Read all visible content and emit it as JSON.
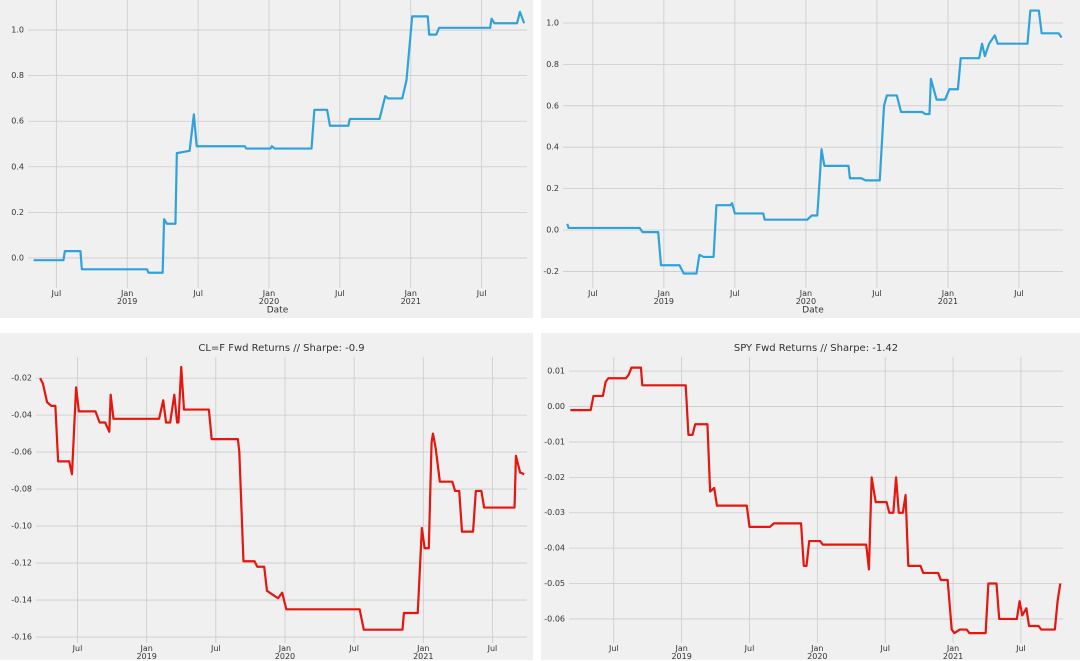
{
  "chart_data": [
    {
      "type": "line",
      "xlabel": "Date",
      "color": "#30a2da",
      "grid": true,
      "xlim": [
        2018.3,
        2021.82
      ],
      "ylim": [
        -0.132,
        1.132
      ],
      "xticks": [
        {
          "value": 2018.5,
          "label": "Jul"
        },
        {
          "value": 2019,
          "label": "Jan\n2019"
        },
        {
          "value": 2019.5,
          "label": "Jul"
        },
        {
          "value": 2020,
          "label": "Jan\n2020"
        },
        {
          "value": 2020.5,
          "label": "Jul"
        },
        {
          "value": 2021,
          "label": "Jan\n2021"
        },
        {
          "value": 2021.5,
          "label": "Jul"
        }
      ],
      "yticks": [
        {
          "value": 0,
          "label": "0.0"
        },
        0.2,
        0.4,
        0.6,
        0.8,
        {
          "value": 1,
          "label": "1.0"
        }
      ],
      "x": [
        2018.34,
        2018.55,
        2018.56,
        2018.67,
        2018.68,
        2019.14,
        2019.15,
        2019.25,
        2019.26,
        2019.28,
        2019.34,
        2019.35,
        2019.44,
        2019.47,
        2019.49,
        2019.83,
        2019.84,
        2020.01,
        2020.02,
        2020.04,
        2020.3,
        2020.32,
        2020.41,
        2020.43,
        2020.56,
        2020.57,
        2020.78,
        2020.82,
        2020.84,
        2020.94,
        2020.97,
        2021.01,
        2021.12,
        2021.13,
        2021.18,
        2021.2,
        2021.56,
        2021.57,
        2021.59,
        2021.75,
        2021.77,
        2021.8
      ],
      "values": [
        -0.01,
        -0.01,
        0.03,
        0.03,
        -0.05,
        -0.05,
        -0.065,
        -0.065,
        0.17,
        0.15,
        0.15,
        0.46,
        0.47,
        0.63,
        0.49,
        0.49,
        0.48,
        0.48,
        0.49,
        0.48,
        0.48,
        0.65,
        0.65,
        0.58,
        0.58,
        0.61,
        0.61,
        0.71,
        0.7,
        0.7,
        0.78,
        1.06,
        1.06,
        0.98,
        0.98,
        1.01,
        1.01,
        1.05,
        1.03,
        1.03,
        1.08,
        1.03
      ]
    },
    {
      "type": "line",
      "xlabel": "Date",
      "color": "#30a2da",
      "grid": true,
      "xlim": [
        2018.29,
        2021.81
      ],
      "ylim": [
        -0.28,
        1.111
      ],
      "xticks": [
        {
          "value": 2018.5,
          "label": "Jul"
        },
        {
          "value": 2019,
          "label": "Jan\n2019"
        },
        {
          "value": 2019.5,
          "label": "Jul"
        },
        {
          "value": 2020,
          "label": "Jan\n2020"
        },
        {
          "value": 2020.5,
          "label": "Jul"
        },
        {
          "value": 2021,
          "label": "Jan\n2021"
        },
        {
          "value": 2021.5,
          "label": "Jul"
        }
      ],
      "yticks": [
        -0.2,
        {
          "value": 0,
          "label": "0.0"
        },
        0.2,
        0.4,
        0.6,
        0.8,
        {
          "value": 1,
          "label": "1.0"
        }
      ],
      "x": [
        2018.32,
        2018.33,
        2018.83,
        2018.85,
        2018.96,
        2018.98,
        2019.11,
        2019.14,
        2019.23,
        2019.25,
        2019.28,
        2019.35,
        2019.37,
        2019.47,
        2019.48,
        2019.5,
        2019.7,
        2019.71,
        2020.01,
        2020.04,
        2020.08,
        2020.09,
        2020.11,
        2020.13,
        2020.3,
        2020.31,
        2020.39,
        2020.42,
        2020.52,
        2020.55,
        2020.57,
        2020.64,
        2020.67,
        2020.82,
        2020.84,
        2020.87,
        2020.88,
        2020.92,
        2020.98,
        2021.01,
        2021.07,
        2021.09,
        2021.22,
        2021.24,
        2021.26,
        2021.29,
        2021.33,
        2021.35,
        2021.56,
        2021.58,
        2021.64,
        2021.66,
        2021.78,
        2021.8
      ],
      "values": [
        0.03,
        0.01,
        0.01,
        -0.01,
        -0.01,
        -0.17,
        -0.17,
        -0.21,
        -0.21,
        -0.12,
        -0.13,
        -0.13,
        0.12,
        0.12,
        0.13,
        0.08,
        0.08,
        0.05,
        0.05,
        0.07,
        0.07,
        0.17,
        0.39,
        0.31,
        0.31,
        0.25,
        0.25,
        0.24,
        0.24,
        0.6,
        0.65,
        0.65,
        0.57,
        0.57,
        0.56,
        0.56,
        0.73,
        0.63,
        0.63,
        0.68,
        0.68,
        0.83,
        0.83,
        0.9,
        0.84,
        0.9,
        0.94,
        0.9,
        0.9,
        1.06,
        1.06,
        0.95,
        0.95,
        0.93
      ]
    },
    {
      "type": "line",
      "title": "CL=F Fwd Returns //  Sharpe: -0.9",
      "color": "#e5150f",
      "grid": true,
      "xlim": [
        2018.2,
        2021.75
      ],
      "ylim": [
        -0.1632,
        -0.0086
      ],
      "xticks": [
        {
          "value": 2018.5,
          "label": "Jul"
        },
        {
          "value": 2019,
          "label": "Jan\n2019"
        },
        {
          "value": 2019.5,
          "label": "Jul"
        },
        {
          "value": 2020,
          "label": "Jan\n2020"
        },
        {
          "value": 2020.5,
          "label": "Jul"
        },
        {
          "value": 2021,
          "label": "Jan\n2021"
        },
        {
          "value": 2021.5,
          "label": "Jul"
        }
      ],
      "yticks": [
        -0.02,
        -0.04,
        -0.06,
        -0.08,
        {
          "value": -0.1,
          "label": "-0.10"
        },
        -0.12,
        -0.14,
        -0.16
      ],
      "x": [
        2018.23,
        2018.25,
        2018.28,
        2018.31,
        2018.34,
        2018.36,
        2018.44,
        2018.46,
        2018.49,
        2018.51,
        2018.63,
        2018.66,
        2018.7,
        2018.73,
        2018.74,
        2018.76,
        2019.09,
        2019.12,
        2019.14,
        2019.17,
        2019.2,
        2019.22,
        2019.23,
        2019.25,
        2019.27,
        2019.45,
        2019.47,
        2019.66,
        2019.67,
        2019.7,
        2019.78,
        2019.8,
        2019.85,
        2019.87,
        2019.91,
        2019.95,
        2019.98,
        2020.01,
        2020.54,
        2020.57,
        2020.85,
        2020.86,
        2020.96,
        2020.99,
        2021.01,
        2021.04,
        2021.06,
        2021.07,
        2021.09,
        2021.12,
        2021.21,
        2021.23,
        2021.26,
        2021.28,
        2021.36,
        2021.38,
        2021.42,
        2021.44,
        2021.66,
        2021.67,
        2021.7,
        2021.73
      ],
      "values": [
        -0.02,
        -0.023,
        -0.033,
        -0.035,
        -0.035,
        -0.065,
        -0.065,
        -0.072,
        -0.025,
        -0.038,
        -0.038,
        -0.044,
        -0.044,
        -0.049,
        -0.029,
        -0.042,
        -0.042,
        -0.032,
        -0.044,
        -0.044,
        -0.029,
        -0.044,
        -0.044,
        -0.014,
        -0.037,
        -0.037,
        -0.053,
        -0.053,
        -0.06,
        -0.119,
        -0.119,
        -0.122,
        -0.122,
        -0.135,
        -0.137,
        -0.139,
        -0.136,
        -0.145,
        -0.145,
        -0.156,
        -0.156,
        -0.147,
        -0.147,
        -0.101,
        -0.112,
        -0.112,
        -0.055,
        -0.05,
        -0.058,
        -0.076,
        -0.076,
        -0.081,
        -0.081,
        -0.103,
        -0.103,
        -0.081,
        -0.081,
        -0.09,
        -0.09,
        -0.062,
        -0.071,
        -0.072
      ]
    },
    {
      "type": "line",
      "title": "SPY Fwd Returns //  Sharpe: -1.42",
      "color": "#e5150f",
      "grid": true,
      "xlim": [
        2018.17,
        2021.81
      ],
      "ylim": [
        -0.0668,
        0.014
      ],
      "xticks": [
        {
          "value": 2018.5,
          "label": "Jul"
        },
        {
          "value": 2019,
          "label": "Jan\n2019"
        },
        {
          "value": 2019.5,
          "label": "Jul"
        },
        {
          "value": 2020,
          "label": "Jan\n2020"
        },
        {
          "value": 2020.5,
          "label": "Jul"
        },
        {
          "value": 2021,
          "label": "Jan\n2021"
        },
        {
          "value": 2021.5,
          "label": "Jul"
        }
      ],
      "yticks": [
        0.01,
        {
          "value": 0,
          "label": "0.00"
        },
        -0.01,
        -0.02,
        -0.03,
        -0.04,
        -0.05,
        -0.06
      ],
      "x": [
        2018.18,
        2018.33,
        2018.35,
        2018.42,
        2018.44,
        2018.46,
        2018.59,
        2018.61,
        2018.63,
        2018.7,
        2018.71,
        2019.03,
        2019.05,
        2019.08,
        2019.1,
        2019.19,
        2019.21,
        2019.24,
        2019.26,
        2019.48,
        2019.5,
        2019.65,
        2019.68,
        2019.88,
        2019.9,
        2019.92,
        2019.94,
        2020.02,
        2020.04,
        2020.36,
        2020.38,
        2020.4,
        2020.43,
        2020.51,
        2020.53,
        2020.56,
        2020.58,
        2020.6,
        2020.63,
        2020.65,
        2020.67,
        2020.76,
        2020.78,
        2020.89,
        2020.91,
        2020.96,
        2020.99,
        2021.01,
        2021.05,
        2021.1,
        2021.12,
        2021.24,
        2021.26,
        2021.32,
        2021.34,
        2021.47,
        2021.49,
        2021.51,
        2021.54,
        2021.56,
        2021.63,
        2021.65,
        2021.75,
        2021.77,
        2021.79
      ],
      "values": [
        -0.001,
        -0.001,
        0.003,
        0.003,
        0.007,
        0.008,
        0.008,
        0.009,
        0.011,
        0.011,
        0.006,
        0.006,
        -0.008,
        -0.008,
        -0.005,
        -0.005,
        -0.024,
        -0.023,
        -0.028,
        -0.028,
        -0.034,
        -0.034,
        -0.033,
        -0.033,
        -0.045,
        -0.045,
        -0.038,
        -0.038,
        -0.039,
        -0.039,
        -0.046,
        -0.02,
        -0.027,
        -0.027,
        -0.03,
        -0.03,
        -0.02,
        -0.03,
        -0.03,
        -0.025,
        -0.045,
        -0.045,
        -0.047,
        -0.047,
        -0.049,
        -0.049,
        -0.063,
        -0.064,
        -0.063,
        -0.063,
        -0.064,
        -0.064,
        -0.05,
        -0.05,
        -0.06,
        -0.06,
        -0.055,
        -0.059,
        -0.057,
        -0.062,
        -0.062,
        -0.063,
        -0.063,
        -0.055,
        -0.05
      ]
    }
  ]
}
